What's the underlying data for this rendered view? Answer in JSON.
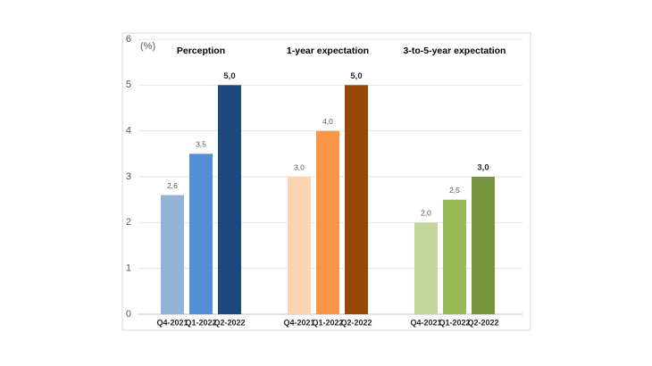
{
  "chart_data": {
    "type": "grouped-bar",
    "y_unit": "(%)",
    "ylim": [
      0,
      6
    ],
    "yticks": [
      0,
      1,
      2,
      3,
      4,
      5,
      6
    ],
    "grid": true,
    "groups": [
      {
        "name": "Perception",
        "categories": [
          "Q4-2021",
          "Q1-2022",
          "Q2-2022"
        ],
        "values": [
          2.6,
          3.5,
          5.0
        ],
        "value_labels": [
          "2,6",
          "3,5",
          "5,0"
        ],
        "colors": [
          "#95b3d7",
          "#558ed5",
          "#1f497d"
        ]
      },
      {
        "name": "1-year expectation",
        "categories": [
          "Q4-2021",
          "Q1-2022",
          "Q2-2022"
        ],
        "values": [
          3.0,
          4.0,
          5.0
        ],
        "value_labels": [
          "3,0",
          "4,0",
          "5,0"
        ],
        "colors": [
          "#fcd5b5",
          "#f79646",
          "#974706"
        ]
      },
      {
        "name": "3-to-5-year expectation",
        "categories": [
          "Q4-2021",
          "Q1-2022",
          "Q2-2022"
        ],
        "values": [
          2.0,
          2.5,
          3.0
        ],
        "value_labels": [
          "2,0",
          "2,5",
          "3,0"
        ],
        "colors": [
          "#c3d69b",
          "#9bbb59",
          "#77933c"
        ]
      }
    ]
  }
}
